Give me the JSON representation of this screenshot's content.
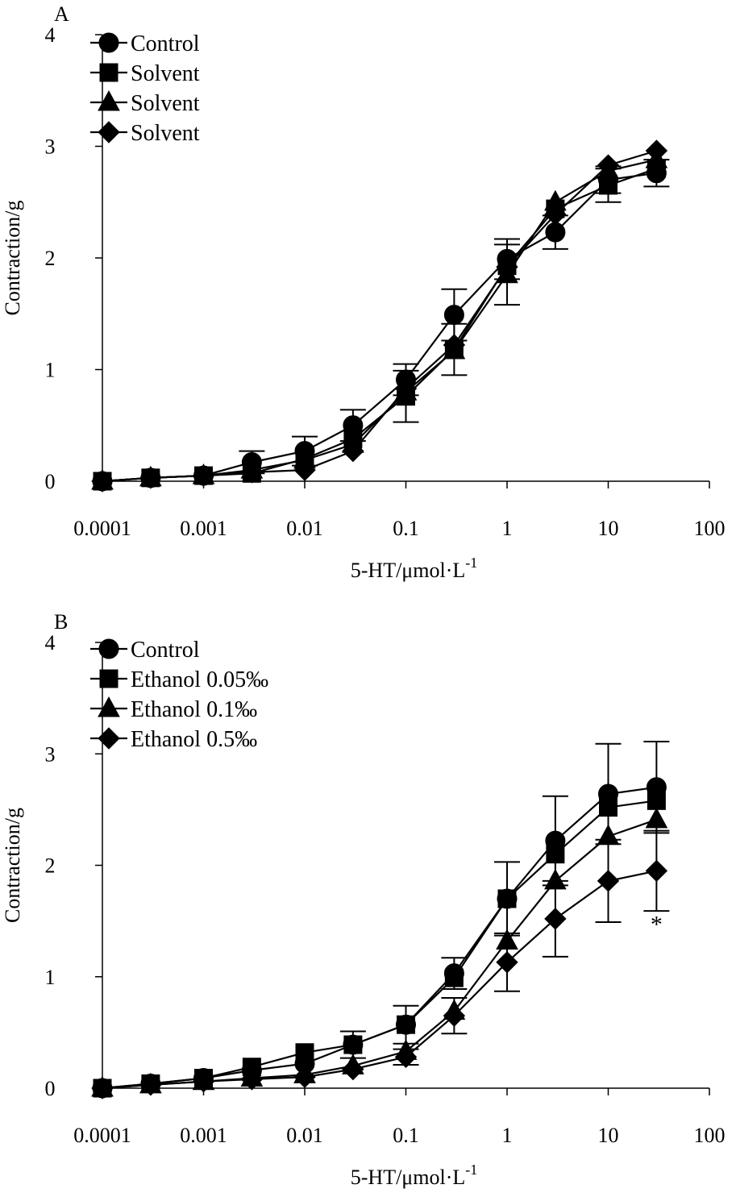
{
  "chart_data": [
    {
      "type": "line",
      "panel": "A",
      "xscale": "log",
      "xlabel": "5-HT/μmol·L",
      "xlabel_sup": "-1",
      "ylabel": "Contraction/g",
      "xlim": [
        0.0001,
        100
      ],
      "ylim": [
        0,
        4
      ],
      "xticks": [
        "0.0001",
        "0.001",
        "0.01",
        "0.1",
        "1",
        "10",
        "100"
      ],
      "yticks": [
        "0",
        "1",
        "2",
        "3",
        "4"
      ],
      "legend_position": "top-left",
      "x": [
        0.0001,
        0.0003,
        0.001,
        0.003,
        0.01,
        0.03,
        0.1,
        0.3,
        1,
        3,
        10,
        30
      ],
      "series": [
        {
          "name": "Control",
          "marker": "circle",
          "values": [
            0,
            0.03,
            0.05,
            0.17,
            0.27,
            0.5,
            0.91,
            1.49,
            1.99,
            2.23,
            2.7,
            2.76
          ],
          "errors": [
            0,
            0,
            0,
            0.1,
            0.13,
            0.14,
            0.14,
            0.23,
            0.18,
            0.15,
            0.12,
            0.12
          ]
        },
        {
          "name": "Solvent",
          "marker": "square",
          "values": [
            0,
            0.03,
            0.05,
            0.07,
            0.2,
            0.38,
            0.76,
            1.18,
            1.93,
            2.44,
            2.65,
            2.8
          ],
          "errors": [
            0,
            0,
            0,
            0,
            0,
            0,
            0.23,
            0.23,
            0,
            0,
            0.15,
            0
          ]
        },
        {
          "name": "Solvent",
          "marker": "triangle",
          "values": [
            0,
            0.03,
            0.05,
            0.1,
            0.19,
            0.33,
            0.8,
            1.17,
            1.85,
            2.5,
            2.78,
            2.88
          ],
          "errors": [
            0,
            0,
            0,
            0,
            0,
            0,
            0,
            0,
            0.27,
            0,
            0,
            0
          ]
        },
        {
          "name": "Solvent",
          "marker": "diamond",
          "values": [
            0,
            0.03,
            0.05,
            0.08,
            0.1,
            0.27,
            0.83,
            1.22,
            1.92,
            2.39,
            2.83,
            2.96
          ],
          "errors": [
            0,
            0,
            0,
            0,
            0,
            0,
            0,
            0,
            0,
            0,
            0,
            0
          ]
        }
      ],
      "annotations": []
    },
    {
      "type": "line",
      "panel": "B",
      "xscale": "log",
      "xlabel": "5-HT/μmol·L",
      "xlabel_sup": "-1",
      "ylabel": "Contraction/g",
      "xlim": [
        0.0001,
        100
      ],
      "ylim": [
        0,
        4
      ],
      "xticks": [
        "0.0001",
        "0.001",
        "0.01",
        "0.1",
        "1",
        "10",
        "100"
      ],
      "yticks": [
        "0",
        "1",
        "2",
        "3",
        "4"
      ],
      "legend_position": "top-left",
      "x": [
        0.0001,
        0.0003,
        0.001,
        0.003,
        0.01,
        0.03,
        0.1,
        0.3,
        1,
        3,
        10,
        30
      ],
      "series": [
        {
          "name": "Control",
          "marker": "circle",
          "values": [
            0,
            0.04,
            0.09,
            0.16,
            0.22,
            0.39,
            0.57,
            1.03,
            1.7,
            2.22,
            2.64,
            2.7
          ],
          "errors": [
            0,
            0,
            0,
            0,
            0,
            0.12,
            0.17,
            0.14,
            0.33,
            0.4,
            0.45,
            0.41
          ]
        },
        {
          "name": "Ethanol 0.05‰",
          "marker": "square",
          "values": [
            0,
            0.04,
            0.09,
            0.19,
            0.32,
            0.39,
            0.57,
            0.99,
            1.7,
            2.1,
            2.52,
            2.58
          ],
          "errors": [
            0,
            0,
            0,
            0,
            0,
            0,
            0,
            0,
            0,
            0,
            0,
            0
          ]
        },
        {
          "name": "Ethanol 0.1‰",
          "marker": "triangle",
          "values": [
            0,
            0.03,
            0.06,
            0.09,
            0.12,
            0.2,
            0.33,
            0.69,
            1.32,
            1.86,
            2.26,
            2.41
          ],
          "errors": [
            0,
            0,
            0,
            0,
            0,
            0,
            0,
            0,
            0,
            0,
            0,
            0
          ]
        },
        {
          "name": "Ethanol 0.5‰",
          "marker": "diamond",
          "values": [
            0,
            0.03,
            0.06,
            0.08,
            0.1,
            0.17,
            0.28,
            0.65,
            1.13,
            1.52,
            1.86,
            1.95
          ],
          "errors": [
            0,
            0,
            0,
            0,
            0,
            0,
            0.07,
            0.16,
            0.26,
            0.34,
            0.37,
            0.36
          ]
        }
      ],
      "annotations": [
        {
          "text": "*",
          "x": 30,
          "y": 1.5
        }
      ]
    }
  ]
}
